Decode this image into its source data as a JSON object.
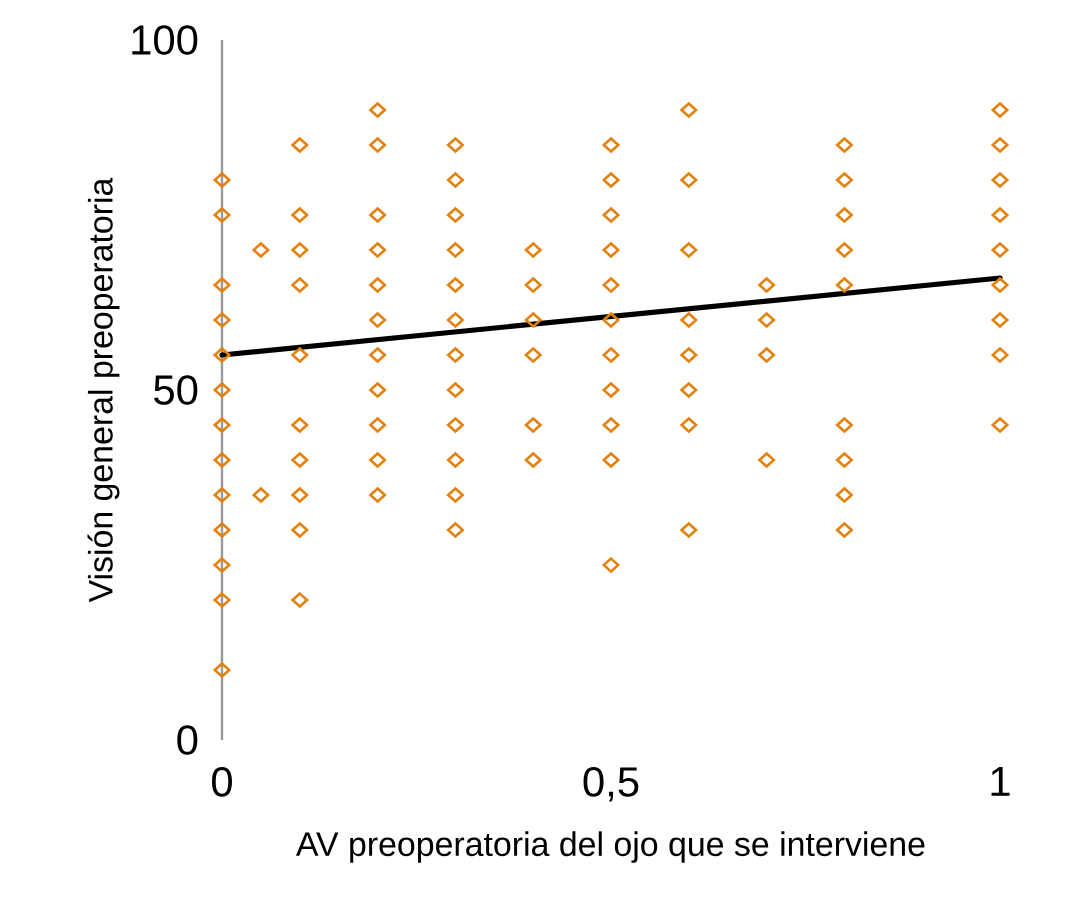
{
  "chart_data": {
    "type": "scatter",
    "xlabel": "AV preoperatoria del ojo que se interviene",
    "ylabel": "Visión general preoperatoria",
    "xlim": [
      0,
      1
    ],
    "ylim": [
      0,
      100
    ],
    "xticks": [
      0,
      {
        "value": 0.5,
        "label": "0,5"
      },
      1
    ],
    "yticks": [
      0,
      50,
      100
    ],
    "grid": false,
    "marker": "diamond",
    "series": [
      {
        "color": "#e3820f",
        "x": [
          0,
          0,
          0,
          0,
          0,
          0,
          0,
          0,
          0,
          0,
          0,
          0,
          0,
          0.05,
          0.05,
          0.1,
          0.1,
          0.1,
          0.1,
          0.1,
          0.1,
          0.1,
          0.1,
          0.1,
          0.1,
          0.2,
          0.2,
          0.2,
          0.2,
          0.2,
          0.2,
          0.2,
          0.2,
          0.2,
          0.2,
          0.2,
          0.3,
          0.3,
          0.3,
          0.3,
          0.3,
          0.3,
          0.3,
          0.3,
          0.3,
          0.3,
          0.3,
          0.3,
          0.4,
          0.4,
          0.4,
          0.4,
          0.4,
          0.4,
          0.5,
          0.5,
          0.5,
          0.5,
          0.5,
          0.5,
          0.5,
          0.5,
          0.5,
          0.5,
          0.5,
          0.6,
          0.6,
          0.6,
          0.6,
          0.6,
          0.6,
          0.6,
          0.6,
          0.7,
          0.7,
          0.7,
          0.7,
          0.8,
          0.8,
          0.8,
          0.8,
          0.8,
          0.8,
          0.8,
          0.8,
          0.8,
          1,
          1,
          1,
          1,
          1,
          1,
          1,
          1,
          1
        ],
        "values": [
          80,
          75,
          65,
          60,
          55,
          50,
          45,
          40,
          35,
          30,
          25,
          20,
          10,
          70,
          35,
          85,
          75,
          70,
          65,
          55,
          45,
          40,
          35,
          30,
          20,
          90,
          85,
          75,
          70,
          65,
          60,
          55,
          50,
          45,
          40,
          35,
          85,
          80,
          75,
          70,
          65,
          60,
          55,
          50,
          45,
          40,
          35,
          30,
          70,
          65,
          60,
          55,
          45,
          40,
          85,
          80,
          75,
          70,
          65,
          60,
          55,
          50,
          45,
          40,
          25,
          90,
          80,
          70,
          60,
          55,
          50,
          45,
          30,
          65,
          60,
          55,
          40,
          85,
          80,
          75,
          70,
          65,
          45,
          40,
          35,
          30,
          90,
          85,
          80,
          75,
          70,
          65,
          60,
          55,
          45
        ]
      },
      {
        "type": "line",
        "color": "#000000",
        "marker": "none",
        "x": [
          0,
          1
        ],
        "values": [
          55,
          66
        ]
      }
    ]
  }
}
